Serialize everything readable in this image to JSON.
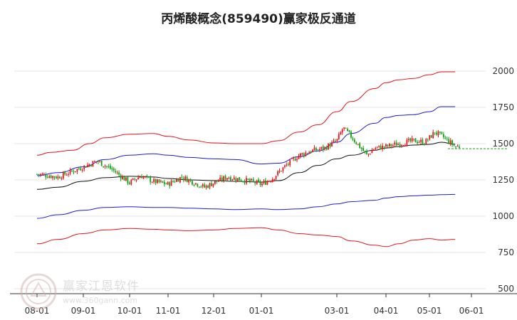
{
  "title": "丙烯酸概念(859490)赢家极反通道",
  "watermark": {
    "text": "赢家江恩软件",
    "url": "www.360gann.com"
  },
  "colors": {
    "outer_band": "#e8141b",
    "inner_band": "#1c1cd8",
    "mid_line": "#111111",
    "candle_up": "#e8141b",
    "candle_down": "#14a014",
    "reference_line": "#14a014",
    "grid": "#e6e6e6"
  },
  "chart_data": {
    "type": "candlestick-with-channel",
    "title": "丙烯酸概念(859490)赢家极反通道",
    "x_tick_labels": [
      "08-01",
      "09-01",
      "10-01",
      "11-01",
      "12-01",
      "01-01",
      "03-01",
      "04-01",
      "05-01",
      "06-01"
    ],
    "y_tick_labels": [
      2000,
      1750,
      1500,
      1250,
      1000,
      750,
      500
    ],
    "ylim": [
      500,
      2000
    ],
    "grid": "horizontal",
    "current_price_line": 1465,
    "price_anchors": [
      [
        "08-01",
        1290
      ],
      [
        "08-15",
        1270
      ],
      [
        "09-01",
        1340
      ],
      [
        "09-10",
        1380
      ],
      [
        "09-20",
        1320
      ],
      [
        "10-01",
        1230
      ],
      [
        "10-10",
        1280
      ],
      [
        "10-20",
        1240
      ],
      [
        "11-01",
        1220
      ],
      [
        "11-10",
        1270
      ],
      [
        "11-25",
        1200
      ],
      [
        "12-01",
        1230
      ],
      [
        "12-10",
        1270
      ],
      [
        "12-25",
        1240
      ],
      [
        "01-01",
        1220
      ],
      [
        "01-10",
        1260
      ],
      [
        "01-20",
        1340
      ],
      [
        "02-01",
        1420
      ],
      [
        "02-10",
        1450
      ],
      [
        "02-20",
        1470
      ],
      [
        "03-01",
        1520
      ],
      [
        "03-05",
        1610
      ],
      [
        "03-10",
        1550
      ],
      [
        "03-20",
        1420
      ],
      [
        "03-25",
        1470
      ],
      [
        "04-01",
        1480
      ],
      [
        "04-10",
        1500
      ],
      [
        "04-20",
        1520
      ],
      [
        "04-28",
        1510
      ],
      [
        "05-01",
        1540
      ],
      [
        "05-05",
        1580
      ],
      [
        "05-12",
        1540
      ],
      [
        "05-20",
        1480
      ]
    ],
    "series": [
      {
        "name": "",
        "role": "upper_outer_band",
        "points": [
          [
            "08-01",
            1420
          ],
          [
            "08-10",
            1440
          ],
          [
            "08-25",
            1455
          ],
          [
            "09-05",
            1500
          ],
          [
            "09-15",
            1540
          ],
          [
            "10-01",
            1565
          ],
          [
            "10-20",
            1570
          ],
          [
            "11-01",
            1550
          ],
          [
            "11-15",
            1525
          ],
          [
            "12-01",
            1505
          ],
          [
            "12-15",
            1500
          ],
          [
            "01-01",
            1500
          ],
          [
            "01-15",
            1520
          ],
          [
            "02-01",
            1580
          ],
          [
            "02-15",
            1630
          ],
          [
            "03-01",
            1720
          ],
          [
            "03-10",
            1790
          ],
          [
            "03-25",
            1880
          ],
          [
            "04-01",
            1920
          ],
          [
            "04-10",
            1940
          ],
          [
            "04-20",
            1950
          ],
          [
            "05-01",
            1975
          ],
          [
            "05-10",
            1995
          ],
          [
            "05-20",
            1995
          ]
        ]
      },
      {
        "name": "",
        "role": "upper_inner_band",
        "points": [
          [
            "08-01",
            1280
          ],
          [
            "08-15",
            1300
          ],
          [
            "09-01",
            1340
          ],
          [
            "09-15",
            1390
          ],
          [
            "10-01",
            1420
          ],
          [
            "10-20",
            1430
          ],
          [
            "11-01",
            1420
          ],
          [
            "11-15",
            1405
          ],
          [
            "12-01",
            1395
          ],
          [
            "12-15",
            1390
          ],
          [
            "01-01",
            1360
          ],
          [
            "01-15",
            1365
          ],
          [
            "02-01",
            1410
          ],
          [
            "02-15",
            1450
          ],
          [
            "03-01",
            1510
          ],
          [
            "03-10",
            1570
          ],
          [
            "03-25",
            1640
          ],
          [
            "04-01",
            1680
          ],
          [
            "04-10",
            1695
          ],
          [
            "04-20",
            1700
          ],
          [
            "05-01",
            1720
          ],
          [
            "05-10",
            1755
          ],
          [
            "05-20",
            1755
          ]
        ]
      },
      {
        "name": "",
        "role": "middle_line",
        "points": [
          [
            "08-01",
            1185
          ],
          [
            "08-15",
            1200
          ],
          [
            "09-01",
            1240
          ],
          [
            "09-15",
            1265
          ],
          [
            "10-01",
            1275
          ],
          [
            "10-20",
            1270
          ],
          [
            "11-01",
            1260
          ],
          [
            "11-15",
            1250
          ],
          [
            "12-01",
            1245
          ],
          [
            "12-15",
            1240
          ],
          [
            "01-01",
            1235
          ],
          [
            "01-15",
            1245
          ],
          [
            "02-01",
            1300
          ],
          [
            "02-15",
            1350
          ],
          [
            "03-01",
            1395
          ],
          [
            "03-10",
            1420
          ],
          [
            "03-25",
            1455
          ],
          [
            "04-01",
            1470
          ],
          [
            "04-10",
            1480
          ],
          [
            "04-20",
            1490
          ],
          [
            "05-01",
            1495
          ],
          [
            "05-10",
            1510
          ],
          [
            "05-20",
            1495
          ]
        ]
      },
      {
        "name": "",
        "role": "lower_inner_band",
        "points": [
          [
            "08-01",
            985
          ],
          [
            "08-15",
            1010
          ],
          [
            "09-01",
            1040
          ],
          [
            "09-15",
            1060
          ],
          [
            "10-01",
            1065
          ],
          [
            "10-20",
            1060
          ],
          [
            "11-01",
            1060
          ],
          [
            "11-15",
            1055
          ],
          [
            "12-01",
            1050
          ],
          [
            "12-15",
            1045
          ],
          [
            "01-01",
            1050
          ],
          [
            "01-15",
            1045
          ],
          [
            "02-01",
            1050
          ],
          [
            "02-15",
            1065
          ],
          [
            "03-01",
            1085
          ],
          [
            "03-10",
            1100
          ],
          [
            "03-25",
            1110
          ],
          [
            "04-01",
            1125
          ],
          [
            "04-10",
            1135
          ],
          [
            "04-20",
            1140
          ],
          [
            "05-01",
            1145
          ],
          [
            "05-10",
            1148
          ],
          [
            "05-20",
            1150
          ]
        ]
      },
      {
        "name": "",
        "role": "lower_outer_band",
        "points": [
          [
            "08-01",
            810
          ],
          [
            "08-15",
            840
          ],
          [
            "09-01",
            880
          ],
          [
            "09-15",
            905
          ],
          [
            "10-01",
            915
          ],
          [
            "10-20",
            910
          ],
          [
            "11-01",
            905
          ],
          [
            "11-15",
            900
          ],
          [
            "12-01",
            905
          ],
          [
            "12-15",
            915
          ],
          [
            "01-01",
            920
          ],
          [
            "01-15",
            905
          ],
          [
            "02-01",
            880
          ],
          [
            "02-15",
            870
          ],
          [
            "03-01",
            860
          ],
          [
            "03-10",
            830
          ],
          [
            "03-25",
            800
          ],
          [
            "04-01",
            790
          ],
          [
            "04-10",
            810
          ],
          [
            "04-20",
            835
          ],
          [
            "05-01",
            845
          ],
          [
            "05-10",
            835
          ],
          [
            "05-20",
            840
          ]
        ]
      }
    ]
  }
}
